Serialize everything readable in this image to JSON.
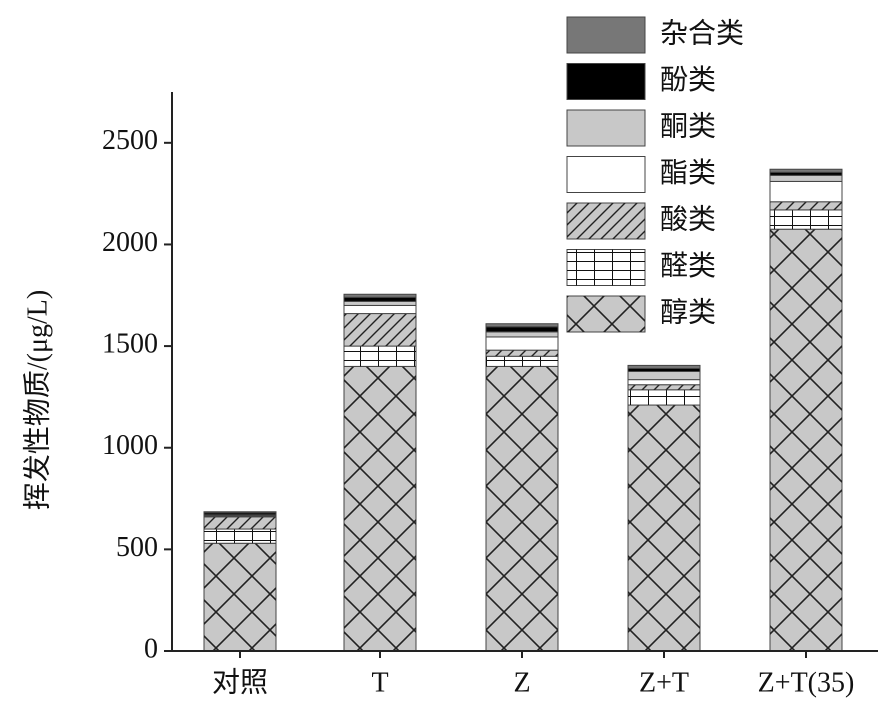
{
  "chart_data": {
    "type": "stacked_bar",
    "ylabel": "挥发性物质/(μg/L)",
    "categories": [
      "对照",
      "T",
      "Z",
      "Z+T",
      "Z+T(35)"
    ],
    "series": [
      {
        "name": "醇类",
        "color": "#c8c8c8",
        "hatch": "cross",
        "values": [
          530,
          1400,
          1400,
          1210,
          2075
        ]
      },
      {
        "name": "醛类",
        "color": "#ffffff",
        "hatch": "grid",
        "values": [
          70,
          100,
          50,
          75,
          95
        ]
      },
      {
        "name": "酸类",
        "color": "#c8c8c8",
        "hatch": "diagonal",
        "values": [
          60,
          160,
          30,
          25,
          40
        ]
      },
      {
        "name": "酯类",
        "color": "#ffffff",
        "values": [
          5,
          40,
          65,
          25,
          100
        ]
      },
      {
        "name": "酮类",
        "color": "#c8c8c8",
        "values": [
          5,
          20,
          25,
          40,
          30
        ]
      },
      {
        "name": "酚类",
        "color": "#000000",
        "values": [
          10,
          20,
          25,
          15,
          15
        ]
      },
      {
        "name": "杂合类",
        "color": "#777777",
        "values": [
          5,
          15,
          15,
          15,
          15
        ]
      }
    ],
    "ylim": [
      0,
      2750
    ],
    "yticks": [
      0,
      500,
      1000,
      1500,
      2000,
      2500
    ],
    "legend": "upper right"
  }
}
